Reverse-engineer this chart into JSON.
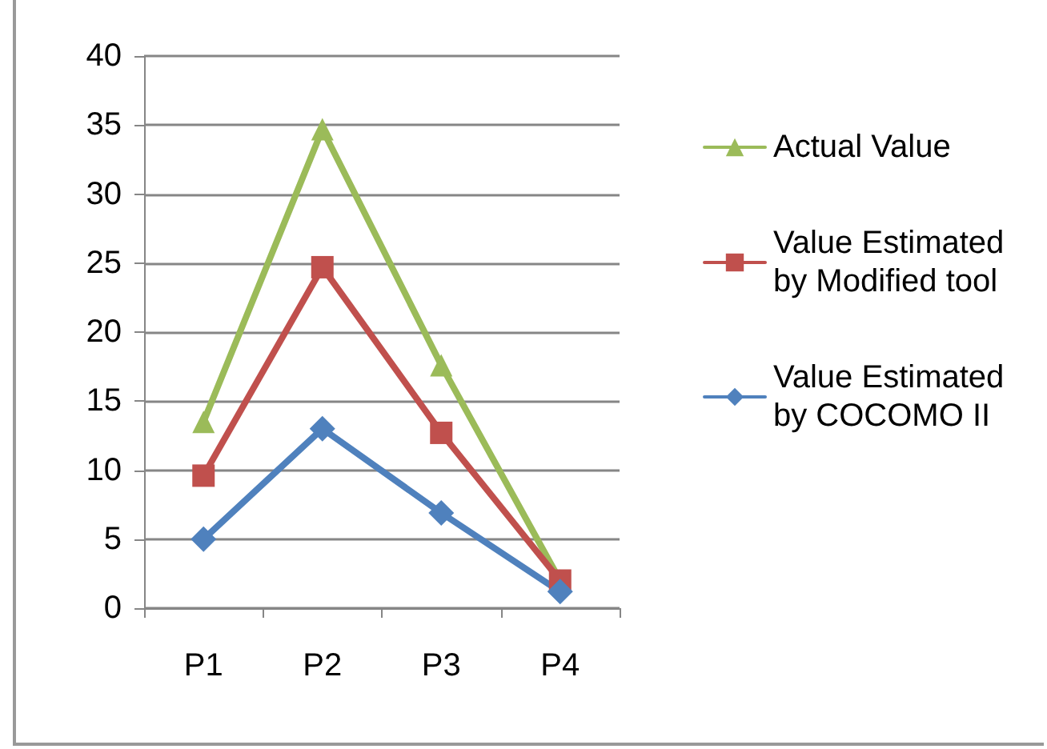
{
  "chart_data": {
    "type": "line",
    "categories": [
      "P1",
      "P2",
      "P3",
      "P4"
    ],
    "series": [
      {
        "name": "Actual Value",
        "color": "#9bbb59",
        "marker": "triangle",
        "values": [
          13.5,
          34.7,
          17.6,
          2.0
        ]
      },
      {
        "name": "Value Estimated by Modified tool",
        "color": "#c0504d",
        "marker": "square",
        "values": [
          9.6,
          24.7,
          12.7,
          2.0
        ]
      },
      {
        "name": "Value Estimated by COCOMO II",
        "color": "#4f81bd",
        "marker": "diamond",
        "values": [
          5.0,
          13.0,
          6.9,
          1.2
        ]
      }
    ],
    "ylim": [
      0,
      40
    ],
    "yticks": [
      0,
      5,
      10,
      15,
      20,
      25,
      30,
      35,
      40
    ],
    "grid": "y",
    "legend": "right",
    "line_style": "solid"
  }
}
